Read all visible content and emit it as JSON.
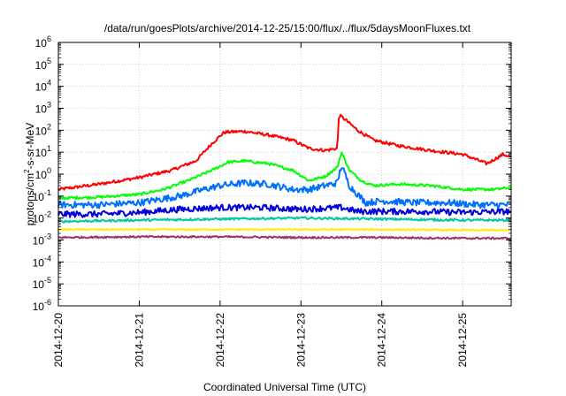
{
  "chart_data": {
    "type": "line",
    "title": "/data/run/goesPlots/archive/2014-12-25/15:00/flux/../flux/5daysMoonFluxes.txt",
    "xlabel": "Coordinated Universal Time (UTC)",
    "ylabel": {
      "base": "protons/cm",
      "sup": "2",
      "rest": "-s-sr-MeV"
    },
    "yscale": "log",
    "ylim_exp": [
      -6,
      6
    ],
    "xlim_days": [
      0,
      5.6
    ],
    "x_ticks": [
      "2014-12-20",
      "2014-12-21",
      "2014-12-22",
      "2014-12-23",
      "2014-12-24",
      "2014-12-25"
    ],
    "y_ticks": [
      {
        "base": "10",
        "exp": "-6"
      },
      {
        "base": "10",
        "exp": "-5"
      },
      {
        "base": "10",
        "exp": "-4"
      },
      {
        "base": "10",
        "exp": "-3"
      },
      {
        "base": "10",
        "exp": "-2"
      },
      {
        "base": "10",
        "exp": "-1"
      },
      {
        "base": "10",
        "exp": "0"
      },
      {
        "base": "10",
        "exp": "1"
      },
      {
        "base": "10",
        "exp": "2"
      },
      {
        "base": "10",
        "exp": "3"
      },
      {
        "base": "10",
        "exp": "4"
      },
      {
        "base": "10",
        "exp": "5"
      },
      {
        "base": "10",
        "exp": "6"
      }
    ],
    "grid": true,
    "series": [
      {
        "color": "#ff0000",
        "noise": 0.07,
        "x": [
          0,
          0.5,
          1.0,
          1.4,
          1.7,
          1.9,
          2.05,
          2.3,
          2.6,
          2.9,
          3.1,
          3.3,
          3.45,
          3.47,
          3.55,
          3.7,
          3.9,
          4.2,
          4.6,
          5.0,
          5.3,
          5.5,
          5.6
        ],
        "y": [
          0.2,
          0.35,
          0.7,
          1.5,
          4,
          25,
          80,
          90,
          60,
          35,
          15,
          12,
          15,
          500,
          300,
          100,
          35,
          20,
          12,
          8,
          3,
          8,
          6
        ]
      },
      {
        "color": "#00ff00",
        "noise": 0.06,
        "x": [
          0,
          0.5,
          1.0,
          1.3,
          1.6,
          1.9,
          2.1,
          2.3,
          2.6,
          2.9,
          3.1,
          3.3,
          3.45,
          3.5,
          3.6,
          3.75,
          3.9,
          4.2,
          4.6,
          5.0,
          5.4,
          5.6
        ],
        "y": [
          0.08,
          0.09,
          0.12,
          0.2,
          0.5,
          1.5,
          3.5,
          4,
          3,
          1.5,
          0.5,
          0.8,
          2,
          10,
          1.5,
          0.5,
          0.3,
          0.35,
          0.3,
          0.2,
          0.2,
          0.25
        ]
      },
      {
        "color": "#0070ff",
        "noise": 0.15,
        "x": [
          0,
          0.5,
          1.0,
          1.5,
          1.8,
          2.0,
          2.3,
          2.6,
          2.9,
          3.1,
          3.3,
          3.45,
          3.5,
          3.6,
          3.8,
          4.0,
          4.4,
          4.8,
          5.2,
          5.6
        ],
        "y": [
          0.04,
          0.04,
          0.05,
          0.1,
          0.2,
          0.3,
          0.4,
          0.35,
          0.2,
          0.2,
          0.3,
          0.4,
          2.5,
          0.3,
          0.05,
          0.06,
          0.05,
          0.05,
          0.04,
          0.04
        ]
      },
      {
        "color": "#0000dd",
        "noise": 0.14,
        "x": [
          0,
          0.5,
          1.0,
          1.5,
          2.0,
          2.5,
          3.0,
          3.5,
          3.7,
          4.0,
          4.5,
          5.0,
          5.6
        ],
        "y": [
          0.015,
          0.015,
          0.018,
          0.025,
          0.03,
          0.03,
          0.025,
          0.03,
          0.02,
          0.02,
          0.02,
          0.018,
          0.02
        ]
      },
      {
        "color": "#00c8a0",
        "noise": 0.05,
        "x": [
          0,
          1.0,
          2.0,
          3.0,
          4.0,
          5.0,
          5.6
        ],
        "y": [
          0.007,
          0.008,
          0.009,
          0.01,
          0.009,
          0.008,
          0.008
        ]
      },
      {
        "color": "#ffee00",
        "noise": 0.03,
        "x": [
          0,
          1.0,
          2.0,
          3.0,
          4.0,
          5.0,
          5.6
        ],
        "y": [
          0.003,
          0.003,
          0.003,
          0.003,
          0.003,
          0.0028,
          0.0028
        ]
      },
      {
        "color": "#993366",
        "noise": 0.04,
        "x": [
          0,
          1.0,
          2.0,
          3.0,
          4.0,
          5.0,
          5.6
        ],
        "y": [
          0.0013,
          0.0014,
          0.0014,
          0.0013,
          0.0013,
          0.0012,
          0.0012
        ]
      }
    ]
  }
}
